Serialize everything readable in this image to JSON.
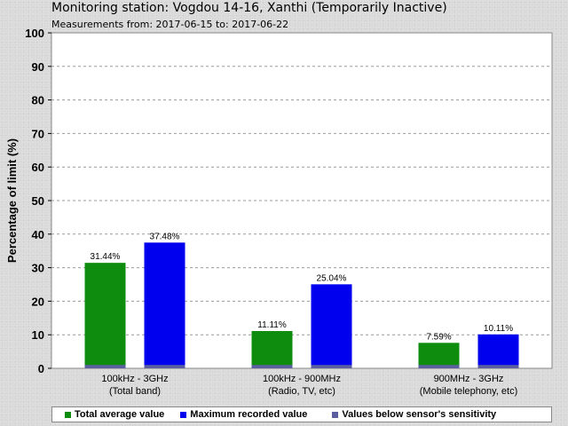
{
  "title": "Monitoring station: Vogdou 14-16, Xanthi (Temporarily Inactive)",
  "subtitle": "Measurements from: 2017-06-15 to: 2017-06-22",
  "colors": {
    "average": "#0d8c0d",
    "maximum": "#0000ee",
    "below_sensitivity": "#5b5fa0"
  },
  "chart_data": {
    "type": "bar",
    "title": "Monitoring station: Vogdou 14-16, Xanthi (Temporarily Inactive)",
    "subtitle": "Measurements from: 2017-06-15 to: 2017-06-22",
    "ylabel": "Percentage of limit (%)",
    "xlabel": "",
    "ylim": [
      0,
      100
    ],
    "yticks": [
      0,
      10,
      20,
      30,
      40,
      50,
      60,
      70,
      80,
      90,
      100
    ],
    "grid": true,
    "legend_position": "bottom",
    "categories": [
      {
        "line1": "100kHz - 3GHz",
        "line2": "(Total band)"
      },
      {
        "line1": "100kHz - 900MHz",
        "line2": "(Radio, TV, etc)"
      },
      {
        "line1": "900MHz - 3GHz",
        "line2": "(Mobile telephony, etc)"
      }
    ],
    "series": [
      {
        "name": "Total average value",
        "values": [
          31.44,
          11.11,
          7.59
        ],
        "labels": [
          "31.44%",
          "11.11%",
          "7.59%"
        ]
      },
      {
        "name": "Maximum recorded value",
        "values": [
          37.48,
          25.04,
          10.11
        ],
        "labels": [
          "37.48%",
          "25.04%",
          "10.11%"
        ]
      },
      {
        "name": "Values below sensor's sensitivity",
        "values": [
          1,
          1,
          1
        ]
      }
    ]
  }
}
